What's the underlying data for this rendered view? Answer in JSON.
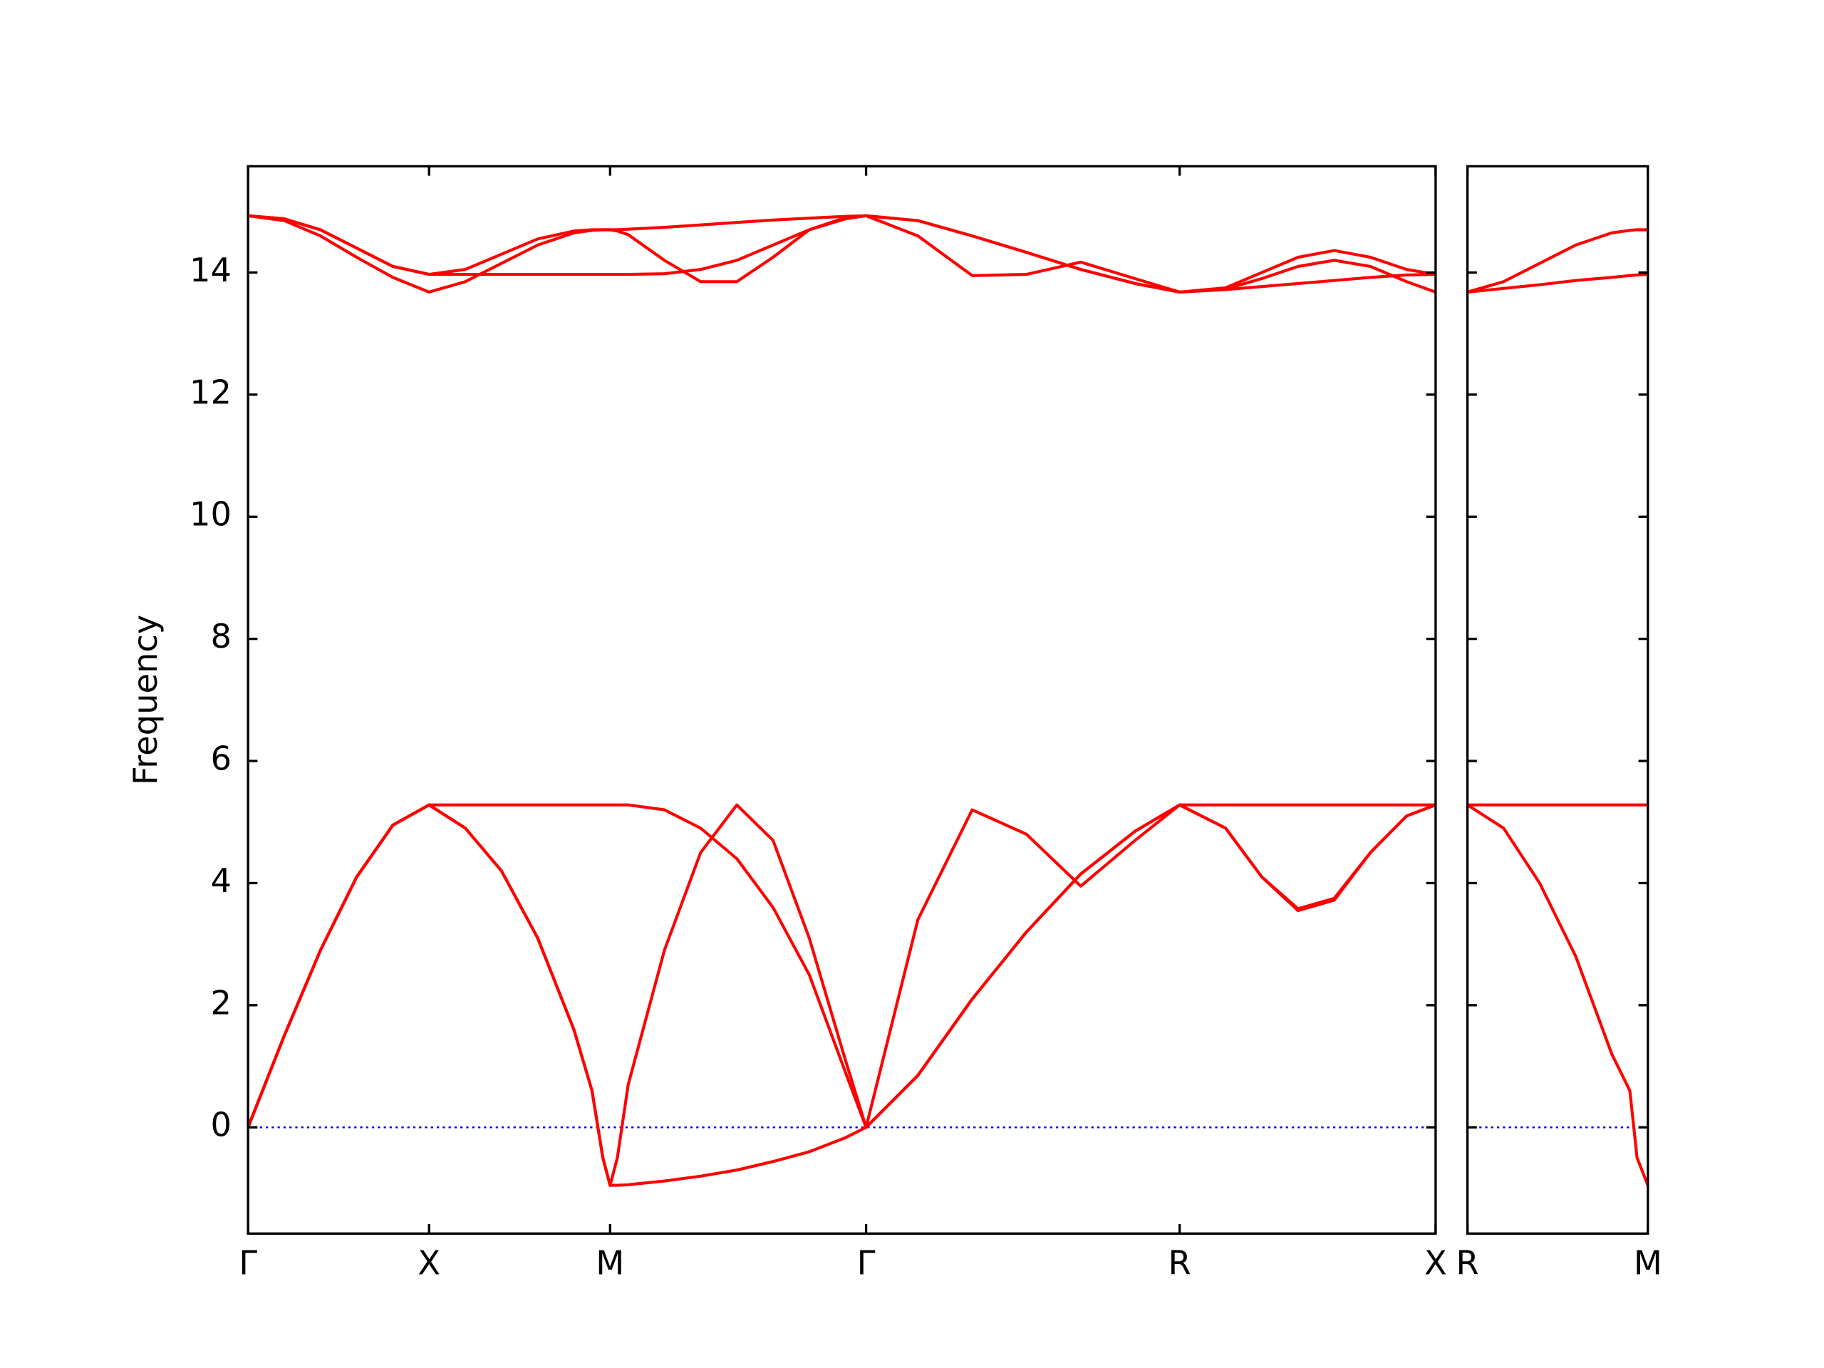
{
  "chart_data": [
    {
      "type": "line",
      "ylabel": "Frequency",
      "x": [
        0,
        0.1,
        0.2,
        0.3,
        0.4,
        0.5,
        0.6,
        0.7,
        0.8,
        0.9,
        0.95,
        0.98,
        1.0,
        1.02,
        1.05,
        1.15,
        1.25,
        1.35,
        1.45,
        1.55,
        1.65,
        1.707,
        1.85,
        2.0,
        2.15,
        2.3,
        2.45,
        2.573,
        2.7,
        2.8,
        2.9,
        3.0,
        3.1,
        3.2,
        3.28
      ],
      "series": [
        {
          "color": "#ff0000",
          "values": [
            0,
            1.5,
            2.9,
            4.1,
            4.95,
            5.28,
            4.9,
            4.2,
            3.1,
            1.6,
            0.6,
            -0.5,
            -0.95,
            -0.95,
            -0.94,
            -0.88,
            -0.8,
            -0.7,
            -0.56,
            -0.4,
            -0.17,
            0,
            0.85,
            2.1,
            3.2,
            4.15,
            4.85,
            5.28,
            4.9,
            4.1,
            3.58,
            3.75,
            4.5,
            5.1,
            5.28
          ]
        },
        {
          "color": "#ff0000",
          "values": [
            0,
            1.5,
            2.9,
            4.1,
            4.95,
            5.28,
            4.9,
            4.2,
            3.1,
            1.6,
            0.6,
            -0.5,
            -0.95,
            -0.5,
            0.7,
            2.9,
            4.5,
            5.28,
            4.7,
            3.1,
            1.1,
            0,
            3.4,
            5.2,
            4.8,
            3.95,
            4.7,
            5.28,
            4.9,
            4.1,
            3.55,
            3.72,
            4.5,
            5.1,
            5.28
          ]
        },
        {
          "color": "#ff0000",
          "values": [
            0,
            1.5,
            2.9,
            4.1,
            4.95,
            5.28,
            5.28,
            5.28,
            5.28,
            5.28,
            5.28,
            5.28,
            5.28,
            5.28,
            5.28,
            5.2,
            4.9,
            4.4,
            3.6,
            2.5,
            0.9,
            0,
            0.85,
            2.1,
            3.2,
            4.15,
            4.85,
            5.28,
            5.28,
            5.28,
            5.28,
            5.28,
            5.28,
            5.28,
            5.28
          ]
        },
        {
          "color": "#ff0000",
          "values": [
            14.93,
            14.85,
            14.6,
            14.25,
            13.92,
            13.68,
            13.85,
            14.15,
            14.45,
            14.65,
            14.69,
            14.7,
            14.7,
            14.7,
            14.71,
            14.74,
            14.78,
            14.82,
            14.86,
            14.89,
            14.92,
            14.93,
            14.85,
            14.6,
            14.33,
            14.05,
            13.82,
            13.68,
            13.72,
            13.77,
            13.82,
            13.87,
            13.92,
            13.96,
            13.97
          ]
        },
        {
          "color": "#ff0000",
          "values": [
            14.93,
            14.88,
            14.7,
            14.4,
            14.1,
            13.97,
            14.05,
            14.3,
            14.55,
            14.68,
            14.7,
            14.7,
            14.7,
            14.68,
            14.62,
            14.2,
            13.85,
            13.85,
            14.25,
            14.7,
            14.9,
            14.93,
            14.6,
            13.95,
            13.97,
            14.17,
            13.9,
            13.68,
            13.75,
            14.0,
            14.25,
            14.36,
            14.25,
            14.05,
            13.97
          ]
        },
        {
          "color": "#ff0000",
          "values": [
            14.93,
            14.88,
            14.7,
            14.4,
            14.1,
            13.97,
            13.97,
            13.97,
            13.97,
            13.97,
            13.97,
            13.97,
            13.97,
            13.97,
            13.97,
            13.98,
            14.05,
            14.2,
            14.45,
            14.7,
            14.88,
            14.93,
            14.85,
            14.6,
            14.33,
            14.05,
            13.82,
            13.68,
            13.73,
            13.9,
            14.1,
            14.2,
            14.1,
            13.85,
            13.68
          ]
        }
      ],
      "xlim": [
        0,
        3.28
      ],
      "xticks": [
        {
          "value": 0,
          "label": "Γ"
        },
        {
          "value": 0.5,
          "label": "X"
        },
        {
          "value": 1.0,
          "label": "M"
        },
        {
          "value": 1.707,
          "label": "Γ"
        },
        {
          "value": 2.573,
          "label": "R"
        },
        {
          "value": 3.28,
          "label": "X"
        }
      ],
      "ylim": [
        -1.74,
        15.74
      ],
      "yticks": [
        0,
        2,
        4,
        6,
        8,
        10,
        12,
        14
      ],
      "hline": 0,
      "hline_color": "#0000ff"
    },
    {
      "type": "line",
      "x": [
        0,
        0.1,
        0.2,
        0.3,
        0.4,
        0.45,
        0.47,
        0.5
      ],
      "series": [
        {
          "color": "#ff0000",
          "values": [
            5.28,
            4.9,
            4.0,
            2.8,
            1.2,
            0.6,
            -0.5,
            -0.95
          ]
        },
        {
          "color": "#ff0000",
          "values": [
            5.28,
            5.28,
            5.28,
            5.28,
            5.28,
            5.28,
            5.28,
            5.28
          ]
        },
        {
          "color": "#ff0000",
          "values": [
            13.68,
            13.85,
            14.15,
            14.45,
            14.65,
            14.69,
            14.7,
            14.7
          ]
        },
        {
          "color": "#ff0000",
          "values": [
            13.68,
            13.74,
            13.8,
            13.87,
            13.92,
            13.95,
            13.96,
            13.97
          ]
        }
      ],
      "xlim": [
        0,
        0.5
      ],
      "xticks": [
        {
          "value": 0,
          "label": "R"
        },
        {
          "value": 0.5,
          "label": "M"
        }
      ],
      "ylim": [
        -1.74,
        15.74
      ],
      "yticks": [
        0,
        2,
        4,
        6,
        8,
        10,
        12,
        14
      ],
      "hline": 0,
      "hline_color": "#0000ff"
    }
  ]
}
